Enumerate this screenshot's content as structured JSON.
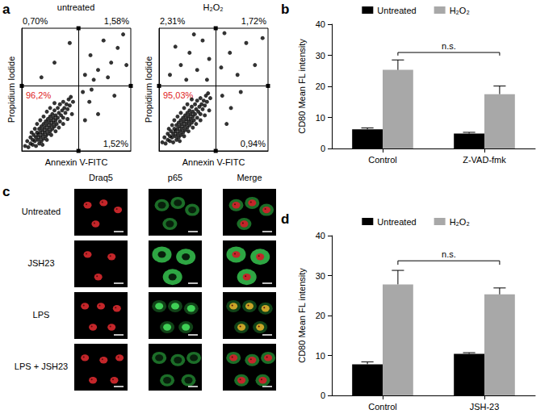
{
  "panel_labels": [
    "a",
    "b",
    "c",
    "d"
  ],
  "chart_data": [
    {
      "type": "scatter",
      "title": "untreated",
      "x_label": "Annexin V-FITC",
      "y_label": "Propidium Iodide",
      "xlim": [
        0,
        100
      ],
      "ylim": [
        0,
        100
      ],
      "xticks": [],
      "yticks": [],
      "tick_labels": false,
      "grid": false,
      "color": "#000000",
      "gates": {
        "x": 52,
        "y": 53
      },
      "quadrants": [
        {
          "position": "upper-left",
          "value": 0.7,
          "label": "0,70%",
          "color": "#000000"
        },
        {
          "position": "upper-right",
          "value": 1.58,
          "label": "1,58%",
          "color": "#000000"
        },
        {
          "position": "lower-left",
          "value": 96.2,
          "label": "96,2%",
          "color": "#e0231c"
        },
        {
          "position": "lower-right",
          "value": 1.52,
          "label": "1,52%",
          "color": "#000000"
        }
      ],
      "points": [
        [
          3,
          4
        ],
        [
          5,
          8
        ],
        [
          6,
          3
        ],
        [
          8,
          6
        ],
        [
          8,
          11
        ],
        [
          10,
          5
        ],
        [
          10,
          9
        ],
        [
          11,
          13
        ],
        [
          12,
          8
        ],
        [
          13,
          4
        ],
        [
          13,
          11
        ],
        [
          14,
          15
        ],
        [
          15,
          9
        ],
        [
          15,
          13
        ],
        [
          16,
          6
        ],
        [
          16,
          18
        ],
        [
          17,
          11
        ],
        [
          17,
          15
        ],
        [
          18,
          8
        ],
        [
          18,
          20
        ],
        [
          19,
          13
        ],
        [
          19,
          17
        ],
        [
          20,
          10
        ],
        [
          20,
          22
        ],
        [
          21,
          15
        ],
        [
          21,
          19
        ],
        [
          22,
          12
        ],
        [
          22,
          24
        ],
        [
          23,
          17
        ],
        [
          23,
          21
        ],
        [
          24,
          14
        ],
        [
          24,
          26
        ],
        [
          25,
          19
        ],
        [
          25,
          23
        ],
        [
          26,
          16
        ],
        [
          26,
          28
        ],
        [
          27,
          21
        ],
        [
          27,
          25
        ],
        [
          28,
          18
        ],
        [
          28,
          30
        ],
        [
          29,
          23
        ],
        [
          29,
          27
        ],
        [
          30,
          20
        ],
        [
          30,
          33
        ],
        [
          31,
          25
        ],
        [
          31,
          29
        ],
        [
          32,
          22
        ],
        [
          33,
          27
        ],
        [
          33,
          35
        ],
        [
          34,
          31
        ],
        [
          35,
          24
        ],
        [
          35,
          38
        ],
        [
          36,
          29
        ],
        [
          37,
          33
        ],
        [
          38,
          27
        ],
        [
          38,
          40
        ],
        [
          39,
          35
        ],
        [
          40,
          31
        ],
        [
          41,
          38
        ],
        [
          42,
          34
        ],
        [
          43,
          42
        ],
        [
          44,
          37
        ],
        [
          45,
          44
        ],
        [
          47,
          40
        ],
        [
          9,
          15
        ],
        [
          12,
          18
        ],
        [
          14,
          22
        ],
        [
          17,
          25
        ],
        [
          20,
          28
        ],
        [
          23,
          32
        ],
        [
          26,
          35
        ],
        [
          30,
          39
        ],
        [
          19,
          5
        ],
        [
          23,
          9
        ],
        [
          27,
          13
        ],
        [
          31,
          16
        ],
        [
          34,
          19
        ],
        [
          38,
          22
        ],
        [
          42,
          26
        ],
        [
          46,
          30
        ],
        [
          18,
          60
        ],
        [
          30,
          72
        ],
        [
          44,
          88
        ],
        [
          58,
          62
        ],
        [
          63,
          78
        ],
        [
          70,
          66
        ],
        [
          75,
          90
        ],
        [
          82,
          72
        ],
        [
          88,
          84
        ],
        [
          93,
          95
        ],
        [
          66,
          58
        ],
        [
          79,
          60
        ],
        [
          96,
          70
        ],
        [
          56,
          48
        ],
        [
          62,
          40
        ],
        [
          70,
          30
        ],
        [
          58,
          25
        ],
        [
          85,
          45
        ],
        [
          64,
          50
        ]
      ]
    },
    {
      "type": "scatter",
      "title": "H₂O₂",
      "x_label": "Annexin V-FITC",
      "y_label": "Propidium Iodide",
      "xlim": [
        0,
        100
      ],
      "ylim": [
        0,
        100
      ],
      "xticks": [],
      "yticks": [],
      "tick_labels": false,
      "grid": false,
      "color": "#000000",
      "gates": {
        "x": 52,
        "y": 53
      },
      "quadrants": [
        {
          "position": "upper-left",
          "value": 2.31,
          "label": "2,31%",
          "color": "#000000"
        },
        {
          "position": "upper-right",
          "value": 1.72,
          "label": "1,72%",
          "color": "#000000"
        },
        {
          "position": "lower-left",
          "value": 95.03,
          "label": "95,03%",
          "color": "#e0231c"
        },
        {
          "position": "lower-right",
          "value": 0.94,
          "label": "0,94%",
          "color": "#000000"
        }
      ],
      "points": [
        [
          3,
          7
        ],
        [
          5,
          11
        ],
        [
          6,
          6
        ],
        [
          8,
          9
        ],
        [
          8,
          14
        ],
        [
          10,
          8
        ],
        [
          10,
          12
        ],
        [
          11,
          16
        ],
        [
          12,
          11
        ],
        [
          13,
          7
        ],
        [
          13,
          14
        ],
        [
          14,
          18
        ],
        [
          15,
          12
        ],
        [
          15,
          16
        ],
        [
          16,
          9
        ],
        [
          16,
          21
        ],
        [
          17,
          14
        ],
        [
          17,
          18
        ],
        [
          18,
          11
        ],
        [
          18,
          23
        ],
        [
          19,
          16
        ],
        [
          19,
          20
        ],
        [
          20,
          13
        ],
        [
          20,
          25
        ],
        [
          21,
          18
        ],
        [
          21,
          22
        ],
        [
          22,
          15
        ],
        [
          22,
          27
        ],
        [
          23,
          20
        ],
        [
          23,
          24
        ],
        [
          24,
          17
        ],
        [
          24,
          29
        ],
        [
          25,
          22
        ],
        [
          25,
          26
        ],
        [
          26,
          19
        ],
        [
          26,
          31
        ],
        [
          27,
          24
        ],
        [
          27,
          28
        ],
        [
          28,
          21
        ],
        [
          28,
          33
        ],
        [
          29,
          26
        ],
        [
          29,
          30
        ],
        [
          30,
          23
        ],
        [
          30,
          36
        ],
        [
          31,
          28
        ],
        [
          31,
          32
        ],
        [
          32,
          25
        ],
        [
          33,
          30
        ],
        [
          33,
          38
        ],
        [
          34,
          34
        ],
        [
          35,
          27
        ],
        [
          35,
          41
        ],
        [
          36,
          32
        ],
        [
          37,
          36
        ],
        [
          38,
          30
        ],
        [
          38,
          43
        ],
        [
          39,
          38
        ],
        [
          40,
          34
        ],
        [
          41,
          41
        ],
        [
          42,
          37
        ],
        [
          43,
          45
        ],
        [
          44,
          40
        ],
        [
          45,
          47
        ],
        [
          47,
          43
        ],
        [
          9,
          18
        ],
        [
          12,
          21
        ],
        [
          14,
          25
        ],
        [
          17,
          28
        ],
        [
          20,
          31
        ],
        [
          23,
          35
        ],
        [
          26,
          38
        ],
        [
          30,
          42
        ],
        [
          19,
          8
        ],
        [
          23,
          12
        ],
        [
          27,
          16
        ],
        [
          31,
          19
        ],
        [
          34,
          22
        ],
        [
          38,
          25
        ],
        [
          42,
          29
        ],
        [
          46,
          33
        ],
        [
          10,
          62
        ],
        [
          20,
          70
        ],
        [
          28,
          80
        ],
        [
          35,
          66
        ],
        [
          40,
          90
        ],
        [
          46,
          75
        ],
        [
          15,
          85
        ],
        [
          32,
          95
        ],
        [
          44,
          58
        ],
        [
          25,
          58
        ],
        [
          57,
          68
        ],
        [
          65,
          80
        ],
        [
          72,
          62
        ],
        [
          80,
          88
        ],
        [
          88,
          70
        ],
        [
          95,
          92
        ],
        [
          60,
          96
        ],
        [
          58,
          45
        ],
        [
          66,
          35
        ],
        [
          75,
          48
        ],
        [
          62,
          22
        ]
      ]
    },
    {
      "type": "bar",
      "y_label": "CD80 Mean FL intensity",
      "categories": [
        "Control",
        "Z-VAD-fmk"
      ],
      "ylim": [
        0,
        40
      ],
      "yticks": [
        0,
        10,
        20,
        30,
        40
      ],
      "legend": "top",
      "grid": false,
      "series": [
        {
          "name": "Untreated",
          "color": "#000000",
          "values": [
            6.2,
            4.8
          ],
          "errors": [
            0.4,
            0.4
          ]
        },
        {
          "name": "H₂O₂",
          "color": "#a8a8a8",
          "values": [
            25.3,
            17.5
          ],
          "errors": [
            3.2,
            2.6
          ]
        }
      ],
      "annotations": [
        {
          "label": "n.s.",
          "series": "H₂O₂",
          "from": "Control",
          "to": "Z-VAD-fmk"
        }
      ]
    },
    {
      "type": "bar",
      "y_label": "CD80 Mean FL intensity",
      "categories": [
        "Control",
        "JSH-23"
      ],
      "ylim": [
        0,
        40
      ],
      "yticks": [
        0,
        10,
        20,
        30,
        40
      ],
      "legend": "top",
      "grid": false,
      "series": [
        {
          "name": "Untreated",
          "color": "#000000",
          "values": [
            7.8,
            10.4
          ],
          "errors": [
            0.6,
            0.3
          ]
        },
        {
          "name": "H₂O₂",
          "color": "#a8a8a8",
          "values": [
            27.8,
            25.3
          ],
          "errors": [
            3.5,
            1.6
          ]
        }
      ],
      "annotations": [
        {
          "label": "n.s.",
          "series": "H₂O₂",
          "from": "Control",
          "to": "JSH-23"
        }
      ]
    }
  ],
  "panel_c": {
    "columns": [
      "Draq5",
      "p65",
      "Merge"
    ],
    "rows": [
      "Untreated",
      "JSH23",
      "LPS",
      "LPS + JSH23"
    ]
  }
}
